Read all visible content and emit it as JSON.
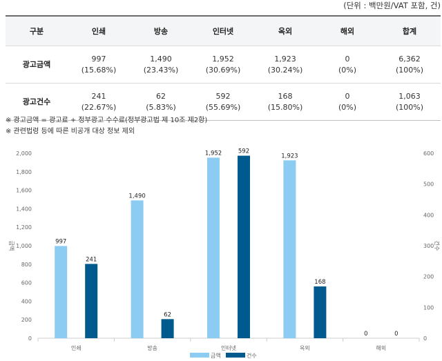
{
  "unit_note": "(단위 : 백만원/VAT 포함, 건)",
  "table": {
    "headers": [
      "구분",
      "인쇄",
      "방송",
      "인터넷",
      "옥외",
      "해외",
      "합계"
    ],
    "rows": [
      {
        "label": "광고금액",
        "cells": [
          {
            "value": "997",
            "pct": "(15.68%)"
          },
          {
            "value": "1,490",
            "pct": "(23.43%)"
          },
          {
            "value": "1,952",
            "pct": "(30.69%)"
          },
          {
            "value": "1,923",
            "pct": "(30.24%)"
          },
          {
            "value": "0",
            "pct": "(0%)"
          },
          {
            "value": "6,362",
            "pct": "(100%)"
          }
        ]
      },
      {
        "label": "광고건수",
        "cells": [
          {
            "value": "241",
            "pct": "(22.67%)"
          },
          {
            "value": "62",
            "pct": "(5.83%)"
          },
          {
            "value": "592",
            "pct": "(55.69%)"
          },
          {
            "value": "168",
            "pct": "(15.80%)"
          },
          {
            "value": "0",
            "pct": "(0%)"
          },
          {
            "value": "1,063",
            "pct": "(100%)"
          }
        ]
      }
    ]
  },
  "notes": [
    "※ 광고금액 = 광고료 + 정부광고 수수료(정부광고법 제 10조 제2항)",
    "※ 관련법령 등에 따른 비공개 대상 정보 제외"
  ],
  "chart_data": {
    "type": "bar",
    "categories": [
      "인쇄",
      "방송",
      "인터넷",
      "옥외",
      "해외"
    ],
    "series": [
      {
        "name": "금액",
        "values": [
          997,
          1490,
          1952,
          1923,
          0
        ],
        "color": "#8ccbf2",
        "axis": "left"
      },
      {
        "name": "건수",
        "values": [
          241,
          62,
          592,
          168,
          0
        ],
        "color": "#005a8e",
        "axis": "right"
      }
    ],
    "data_labels": [
      [
        "997",
        "1,490",
        "1,952",
        "1,923",
        "0"
      ],
      [
        "241",
        "62",
        "592",
        "168",
        "0"
      ]
    ],
    "ylabel_left": "금액",
    "ylabel_right": "건수",
    "ylim_left": [
      0,
      2000
    ],
    "ylim_right": [
      0,
      600
    ],
    "yticks_left": [
      "0",
      "200",
      "400",
      "600",
      "800",
      "1,000",
      "1,200",
      "1,400",
      "1,600",
      "1,800",
      "2,000"
    ],
    "yticks_right": [
      "0",
      "100",
      "200",
      "300",
      "400",
      "500",
      "600"
    ],
    "grid": false,
    "legend_position": "bottom"
  }
}
